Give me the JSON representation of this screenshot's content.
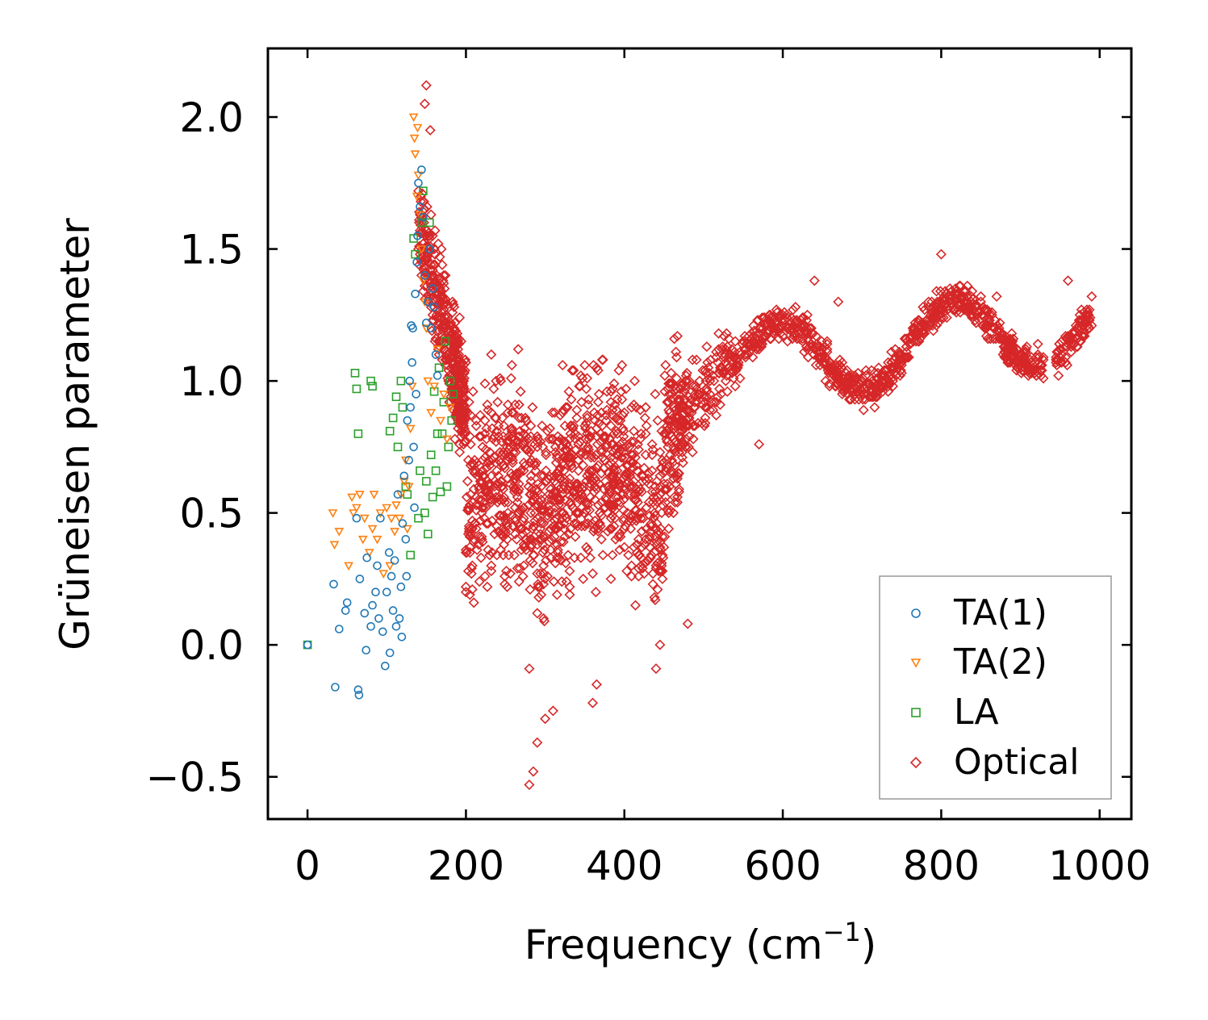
{
  "chart_data": {
    "type": "scatter",
    "xlabel": "Frequency (cm",
    "xlabel_sup": "−1",
    "xlabel_close": ")",
    "ylabel": "Grüneisen parameter",
    "xlim": [
      -50,
      1040
    ],
    "ylim": [
      -0.66,
      2.26
    ],
    "xticks": [
      0,
      200,
      400,
      600,
      800,
      1000
    ],
    "xtick_labels": [
      "0",
      "200",
      "400",
      "600",
      "800",
      "1000"
    ],
    "yticks": [
      -0.5,
      0.0,
      0.5,
      1.0,
      1.5,
      2.0
    ],
    "ytick_labels": [
      "−0.5",
      "0.0",
      "0.5",
      "1.0",
      "1.5",
      "2.0"
    ],
    "legend_position": "lower-right",
    "series": [
      {
        "name": "TA(1)",
        "marker": "circle",
        "color": "#1f77b4",
        "x": [
          0,
          33,
          35,
          40,
          48,
          50,
          62,
          64,
          65,
          66,
          72,
          74,
          75,
          80,
          82,
          86,
          88,
          90,
          92,
          95,
          98,
          100,
          103,
          104,
          106,
          108,
          110,
          112,
          114,
          116,
          118,
          119,
          120,
          122,
          124,
          125,
          126,
          128,
          129,
          130,
          131,
          132,
          133,
          134,
          135,
          136,
          137,
          138,
          139,
          140,
          142,
          144,
          146,
          148,
          150,
          152,
          154,
          156,
          158,
          160,
          162,
          164
        ],
        "y": [
          0.0,
          0.23,
          -0.16,
          0.06,
          0.13,
          0.16,
          0.48,
          -0.17,
          -0.19,
          0.25,
          0.12,
          -0.02,
          0.33,
          0.07,
          0.15,
          0.2,
          0.3,
          0.1,
          0.48,
          0.05,
          -0.08,
          0.2,
          0.35,
          -0.03,
          0.26,
          0.13,
          0.32,
          0.07,
          0.57,
          0.1,
          0.22,
          0.03,
          0.46,
          0.64,
          0.4,
          0.26,
          0.85,
          0.7,
          1.0,
          0.9,
          1.21,
          1.07,
          1.2,
          0.75,
          0.52,
          1.33,
          0.95,
          1.45,
          1.55,
          1.75,
          1.66,
          1.8,
          1.62,
          1.4,
          1.22,
          1.3,
          1.5,
          1.2,
          1.35,
          1.28,
          1.1,
          1.02
        ]
      },
      {
        "name": "TA(2)",
        "marker": "triangle-down",
        "color": "#ff7f0e",
        "x": [
          32,
          34,
          40,
          52,
          56,
          58,
          62,
          66,
          70,
          72,
          78,
          82,
          84,
          88,
          92,
          96,
          100,
          104,
          106,
          110,
          112,
          116,
          118,
          122,
          124,
          126,
          128,
          130,
          132,
          134,
          135,
          136,
          138,
          139,
          140,
          142,
          144,
          146,
          148,
          150,
          152,
          156,
          160,
          164,
          168,
          172,
          176,
          180
        ],
        "y": [
          0.5,
          0.38,
          0.43,
          0.3,
          0.56,
          0.5,
          0.52,
          0.57,
          0.4,
          0.48,
          0.35,
          0.44,
          0.57,
          0.4,
          0.5,
          0.27,
          0.52,
          0.3,
          0.48,
          0.43,
          0.53,
          0.48,
          0.57,
          0.62,
          0.7,
          0.44,
          0.6,
          0.82,
          0.98,
          2.0,
          1.92,
          1.86,
          1.7,
          1.96,
          1.78,
          1.63,
          1.5,
          1.38,
          1.3,
          1.2,
          1.0,
          0.88,
          0.98,
          1.12,
          0.85,
          0.95,
          0.78,
          0.9
        ]
      },
      {
        "name": "LA",
        "marker": "square",
        "color": "#2ca02c",
        "x": [
          0,
          60,
          62,
          64,
          80,
          82,
          104,
          108,
          112,
          114,
          118,
          120,
          124,
          126,
          130,
          134,
          136,
          140,
          142,
          144,
          146,
          148,
          150,
          152,
          154,
          156,
          158,
          160,
          162,
          164,
          166,
          168,
          170,
          172,
          174,
          176,
          178,
          180,
          182,
          184
        ],
        "y": [
          0.0,
          1.03,
          0.97,
          0.8,
          1.0,
          0.98,
          0.81,
          0.86,
          0.94,
          0.75,
          1.0,
          0.9,
          0.6,
          0.57,
          0.34,
          1.54,
          1.48,
          0.48,
          0.66,
          1.6,
          1.72,
          0.5,
          0.62,
          0.42,
          1.6,
          0.72,
          0.56,
          0.96,
          0.66,
          0.8,
          1.05,
          0.58,
          0.8,
          0.92,
          1.15,
          0.6,
          0.75,
          1.0,
          0.85,
          0.95
        ]
      },
      {
        "name": "Optical",
        "marker": "diamond",
        "color": "#d62728",
        "x": [],
        "y": []
      }
    ]
  },
  "legend": {
    "entries": [
      "TA(1)",
      "TA(2)",
      "LA",
      "Optical"
    ]
  }
}
